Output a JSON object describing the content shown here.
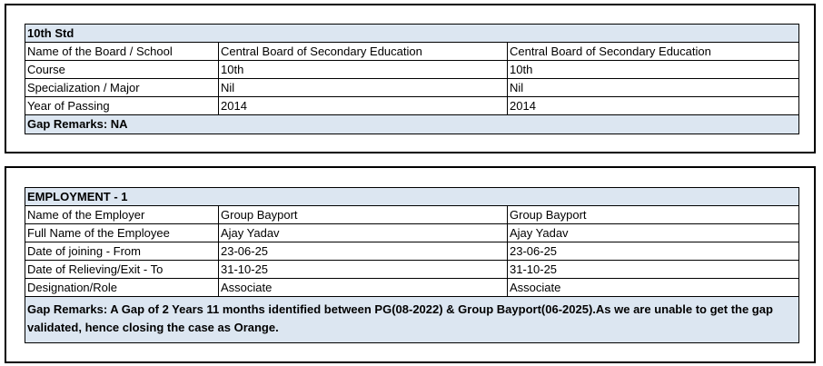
{
  "sections": [
    {
      "title": "10th Std",
      "rows": [
        [
          "Name of the Board / School",
          "Central Board of Secondary Education",
          "Central Board of Secondary Education"
        ],
        [
          "Course",
          "10th",
          "10th"
        ],
        [
          "Specialization / Major",
          "Nil",
          "Nil"
        ],
        [
          "Year of Passing",
          "2014",
          "2014"
        ]
      ],
      "remarks": "Gap Remarks: NA"
    },
    {
      "title": "EMPLOYMENT - 1",
      "rows": [
        [
          "Name of the Employer",
          "Group Bayport",
          "Group Bayport"
        ],
        [
          "Full Name of the Employee",
          "Ajay Yadav",
          "Ajay Yadav"
        ],
        [
          "Date of joining - From",
          "23-06-25",
          "23-06-25"
        ],
        [
          "Date of Relieving/Exit - To",
          "31-10-25",
          "31-10-25"
        ],
        [
          "Designation/Role",
          "Associate",
          "Associate"
        ]
      ],
      "remarks": "Gap Remarks: A Gap of 2 Years 11 months identified between PG(08-2022) & Group Bayport(06-2025).As we are unable to get the gap validated, hence closing the case as Orange."
    }
  ]
}
